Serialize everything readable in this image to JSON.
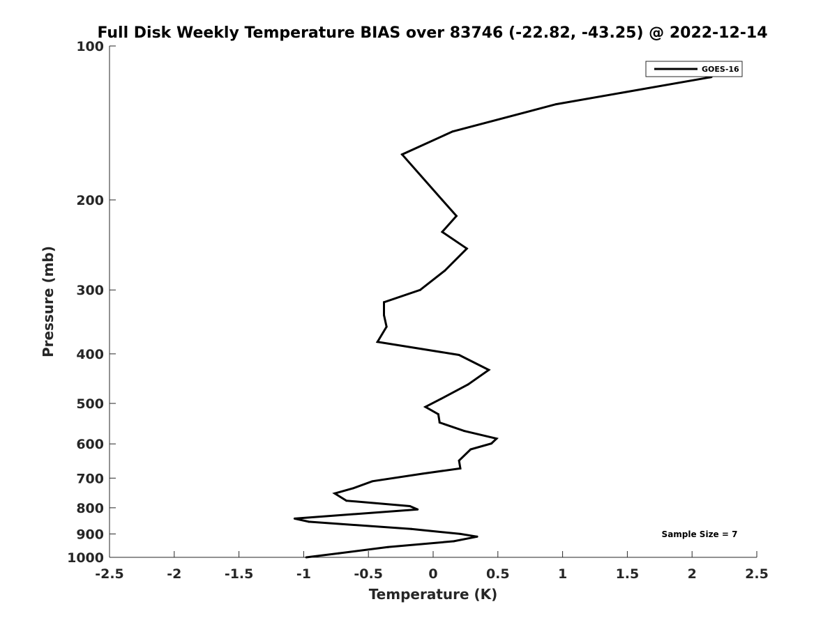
{
  "chart_data": {
    "type": "line",
    "title": "Full Disk Weekly Temperature BIAS over 83746 (-22.82, -43.25) @ 2022-12-14",
    "xlabel": "Temperature (K)",
    "ylabel": "Pressure (mb)",
    "xlim": [
      -2.5,
      2.5
    ],
    "ylim": [
      100,
      1000
    ],
    "y_scale": "log",
    "y_reversed": true,
    "x_ticks": [
      "-2.5",
      "-2",
      "-1.5",
      "-1",
      "-0.5",
      "0",
      "0.5",
      "1",
      "1.5",
      "2",
      "2.5"
    ],
    "y_ticks": [
      "100",
      "200",
      "300",
      "400",
      "500",
      "600",
      "700",
      "800",
      "900",
      "1000"
    ],
    "grid": false,
    "legend_position": "top-right",
    "annotation": "Sample Size = 7",
    "series": [
      {
        "name": "GOES-16",
        "color": "#000000",
        "points": [
          [
            2.15,
            115
          ],
          [
            0.95,
            130
          ],
          [
            0.15,
            147
          ],
          [
            -0.24,
            163
          ],
          [
            0.07,
            200
          ],
          [
            0.18,
            215
          ],
          [
            0.07,
            231
          ],
          [
            0.26,
            249
          ],
          [
            0.09,
            275
          ],
          [
            -0.1,
            300
          ],
          [
            -0.38,
            317
          ],
          [
            -0.38,
            336
          ],
          [
            -0.36,
            354
          ],
          [
            -0.43,
            379
          ],
          [
            0.2,
            402
          ],
          [
            0.43,
            430
          ],
          [
            0.27,
            459
          ],
          [
            0.06,
            490
          ],
          [
            -0.06,
            508
          ],
          [
            0.04,
            525
          ],
          [
            0.05,
            545
          ],
          [
            0.24,
            566
          ],
          [
            0.49,
            586
          ],
          [
            0.45,
            599
          ],
          [
            0.29,
            615
          ],
          [
            0.2,
            647
          ],
          [
            0.21,
            670
          ],
          [
            -0.08,
            686
          ],
          [
            -0.47,
            710
          ],
          [
            -0.62,
            733
          ],
          [
            -0.76,
            750
          ],
          [
            -0.67,
            775
          ],
          [
            -0.18,
            794
          ],
          [
            -0.12,
            806
          ],
          [
            -1.07,
            840
          ],
          [
            -0.96,
            852
          ],
          [
            -0.17,
            880
          ],
          [
            0.21,
            900
          ],
          [
            0.34,
            911
          ],
          [
            0.16,
            930
          ],
          [
            -0.35,
            955
          ],
          [
            -0.73,
            982
          ],
          [
            -0.98,
            1000
          ]
        ]
      }
    ]
  }
}
